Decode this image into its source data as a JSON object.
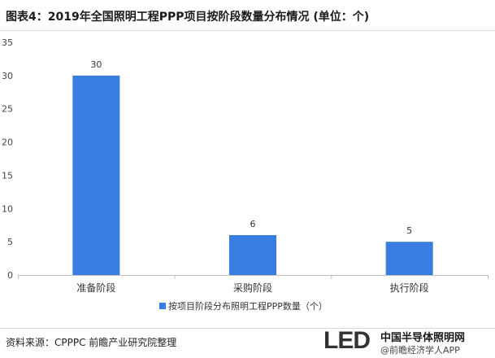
{
  "title": "图表4：2019年全国照明工程PPP项目按阶段数量分布情况 (单位：个)",
  "source": "资料来源：CPPPC 前瞻产业研究院整理",
  "logo": {
    "led_text": "LED",
    "name": "中国半导体照明网",
    "sub": "@前瞻经济学人APP"
  },
  "colors": {
    "bar": "#3a7de0",
    "axis": "#bfbfbf",
    "grid": "#e6e6e6"
  },
  "chart_data": {
    "type": "bar",
    "categories": [
      "准备阶段",
      "采购阶段",
      "执行阶段"
    ],
    "series": [
      {
        "name": "按项目阶段分布照明工程PPP数量（个）",
        "values": [
          30,
          6,
          5
        ]
      }
    ],
    "ylim": [
      0,
      35
    ],
    "yticks": [
      0,
      5,
      10,
      15,
      20,
      25,
      30,
      35
    ],
    "data_labels": true,
    "legend": "bottom"
  }
}
